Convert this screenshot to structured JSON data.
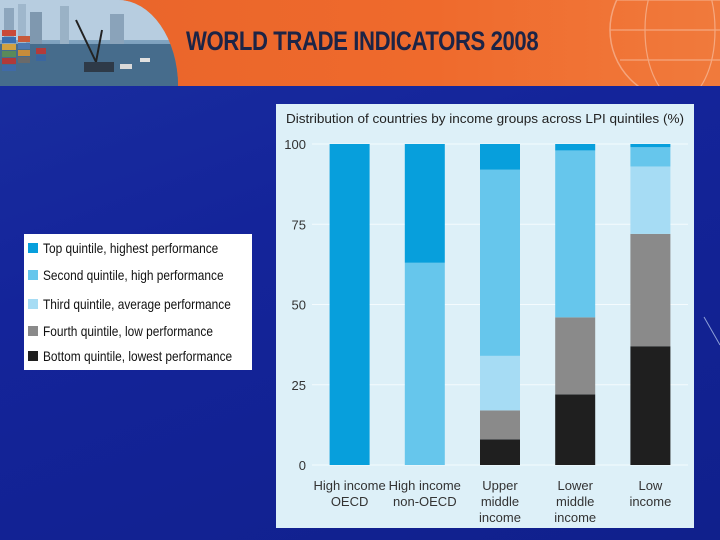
{
  "banner": {
    "title": "WORLD TRADE INDICATORS 2008"
  },
  "legend": {
    "items": [
      {
        "label": "Top quintile, highest performance",
        "color": "#079fdc"
      },
      {
        "label": "Second quintile, high performance",
        "color": "#66c6ec"
      },
      {
        "label": "Third quintile, average performance",
        "color": "#a6dcf4"
      },
      {
        "label": "Fourth quintile, low performance",
        "color": "#8a8a8a"
      },
      {
        "label": "Bottom quintile, lowest performance",
        "color": "#1f1f1f"
      }
    ]
  },
  "chart_data": {
    "type": "bar",
    "stacked": true,
    "title": "Distribution of countries by income groups across LPI quintiles (%)",
    "categories": [
      [
        "High income",
        "OECD"
      ],
      [
        "High income",
        "non-OECD"
      ],
      [
        "Upper",
        "middle",
        "income"
      ],
      [
        "Lower",
        "middle",
        "income"
      ],
      [
        "Low",
        "income"
      ]
    ],
    "yticks": [
      "100",
      "75",
      "50",
      "25",
      "0"
    ],
    "ylim": [
      0,
      100
    ],
    "grid": true,
    "series": [
      {
        "name": "Bottom quintile, lowest performance",
        "color": "#1f1f1f",
        "values": [
          0,
          0,
          8,
          22,
          37
        ]
      },
      {
        "name": "Fourth quintile, low performance",
        "color": "#8a8a8a",
        "values": [
          0,
          0,
          9,
          24,
          35
        ]
      },
      {
        "name": "Third quintile, average performance",
        "color": "#a6dcf4",
        "values": [
          0,
          0,
          17,
          0,
          21
        ]
      },
      {
        "name": "Second quintile, high performance",
        "color": "#66c6ec",
        "values": [
          0,
          63,
          58,
          52,
          6
        ]
      },
      {
        "name": "Top quintile, highest performance",
        "color": "#079fdc",
        "values": [
          100,
          37,
          8,
          2,
          1
        ]
      }
    ]
  }
}
